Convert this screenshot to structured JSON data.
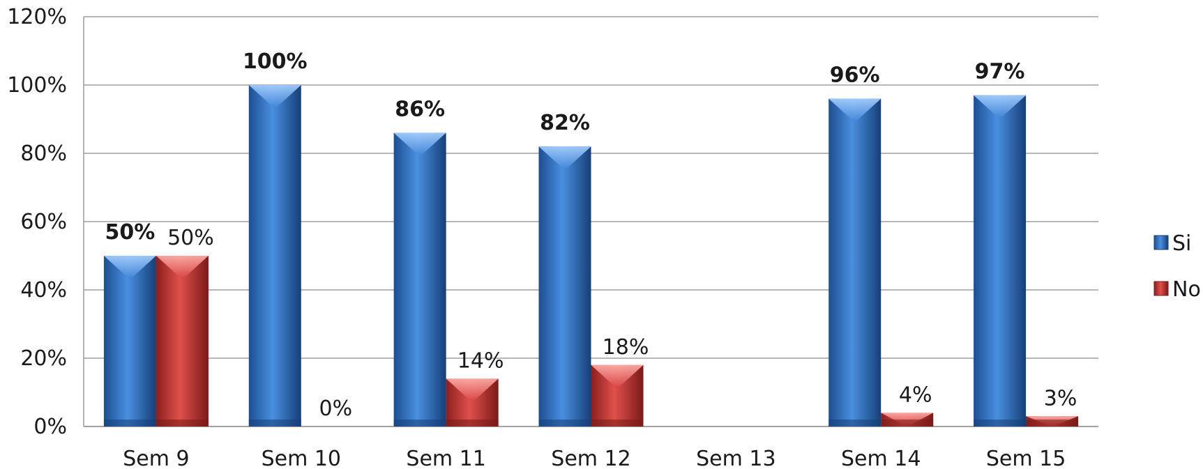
{
  "chart_data": {
    "type": "bar",
    "title": "",
    "categories": [
      "Sem 9",
      "Sem 10",
      "Sem 11",
      "Sem 12",
      "Sem 13",
      "Sem 14",
      "Sem 15"
    ],
    "series": [
      {
        "name": "Si",
        "values": [
          50,
          100,
          86,
          82,
          null,
          96,
          97
        ],
        "labels": [
          "50%",
          "100%",
          "86%",
          "82%",
          "",
          "96%",
          "97%"
        ],
        "color": "#2E6DB8"
      },
      {
        "name": "No",
        "values": [
          50,
          0,
          14,
          18,
          null,
          4,
          3
        ],
        "labels": [
          "50%",
          "0%",
          "14%",
          "18%",
          "",
          "4%",
          "3%"
        ],
        "color": "#B8302E"
      }
    ],
    "ylim": [
      0,
      120
    ],
    "yticks": [
      "0%",
      "20%",
      "40%",
      "60%",
      "80%",
      "100%",
      "120%"
    ],
    "ytick_values": [
      0,
      20,
      40,
      60,
      80,
      100,
      120
    ],
    "grid": true,
    "legend": "right"
  }
}
